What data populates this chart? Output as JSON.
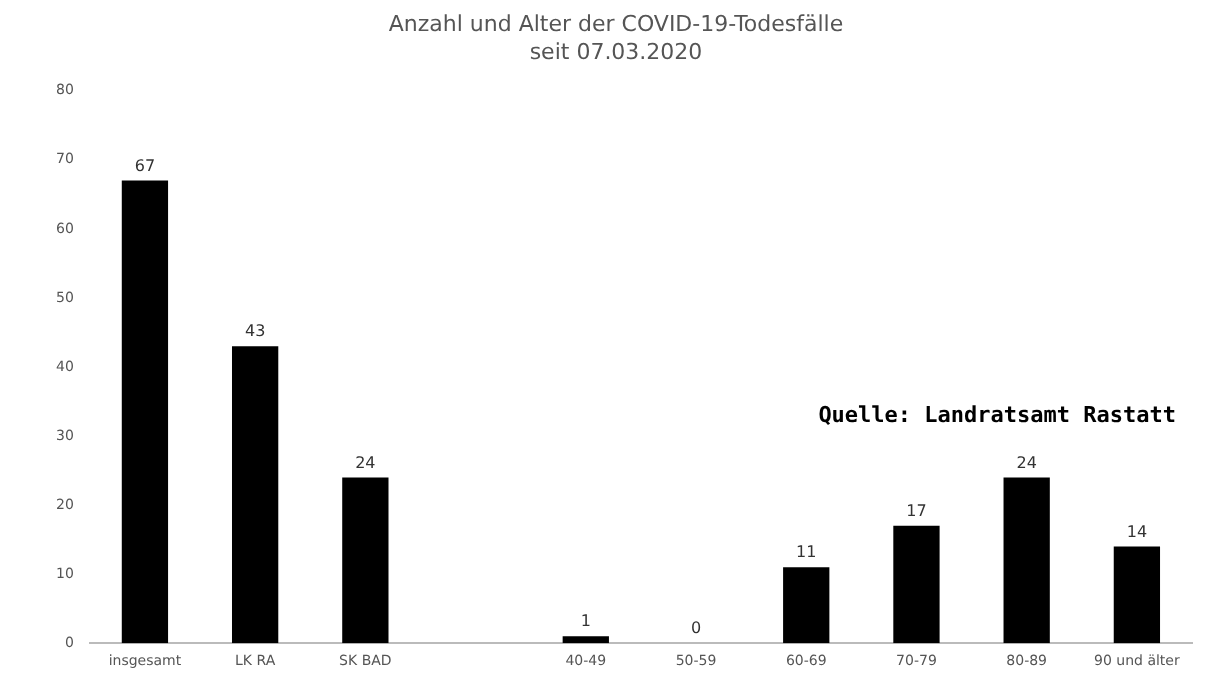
{
  "chart_data": {
    "type": "bar",
    "title": "Anzahl und Alter der COVID-19-Todesfälle",
    "subtitle": "seit 07.03.2020",
    "categories": [
      "insgesamt",
      "LK RA",
      "SK BAD",
      null,
      "40-49",
      "50-59",
      "60-69",
      "70-79",
      "80-89",
      "90 und älter"
    ],
    "values": [
      67,
      43,
      24,
      null,
      1,
      0,
      11,
      17,
      24,
      14
    ],
    "color": "#000000",
    "ylim": [
      0,
      80
    ],
    "yticks": [
      0,
      10,
      20,
      30,
      40,
      50,
      60,
      70,
      80
    ],
    "grid": false,
    "legend": false,
    "data_labels": true,
    "annotations": [
      "Quelle: Landratsamt Rastatt"
    ]
  }
}
